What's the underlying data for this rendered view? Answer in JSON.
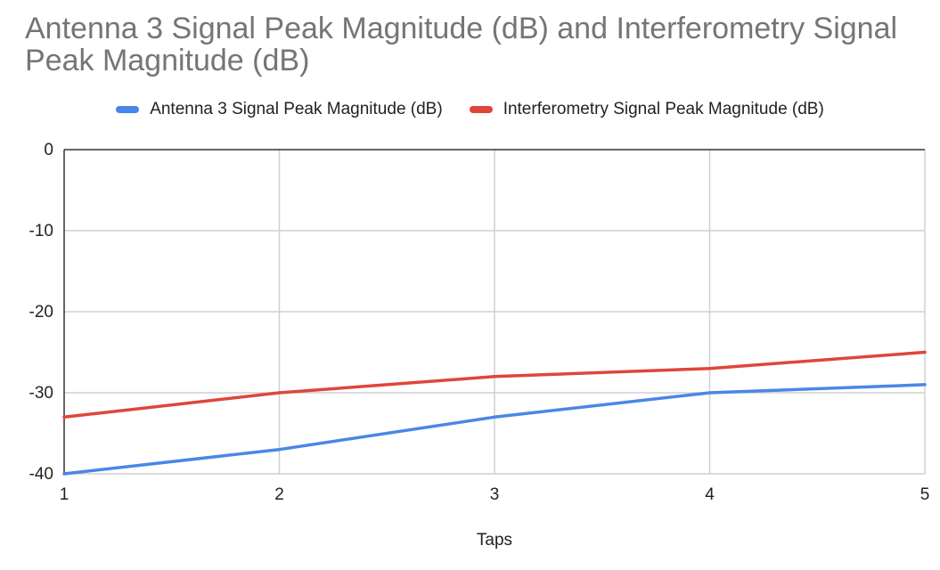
{
  "chart_data": {
    "type": "line",
    "title": "Antenna 3 Signal Peak Magnitude (dB) and Interferometry Signal Peak Magnitude (dB)",
    "xlabel": "Taps",
    "ylabel": "",
    "x": [
      1,
      2,
      3,
      4,
      5
    ],
    "xlim": [
      1,
      5
    ],
    "ylim": [
      -40,
      0
    ],
    "yticks": [
      0,
      -10,
      -20,
      -30,
      -40
    ],
    "xticks": [
      1,
      2,
      3,
      4,
      5
    ],
    "grid": true,
    "legend_position": "top",
    "series": [
      {
        "name": "Antenna 3 Signal Peak Magnitude (dB)",
        "color": "#4a86e8",
        "values": [
          -40,
          -37,
          -33,
          -30,
          -29
        ]
      },
      {
        "name": "Interferometry Signal Peak Magnitude (dB)",
        "color": "#e0453a",
        "values": [
          -33,
          -30,
          -28,
          -27,
          -25
        ]
      }
    ]
  }
}
